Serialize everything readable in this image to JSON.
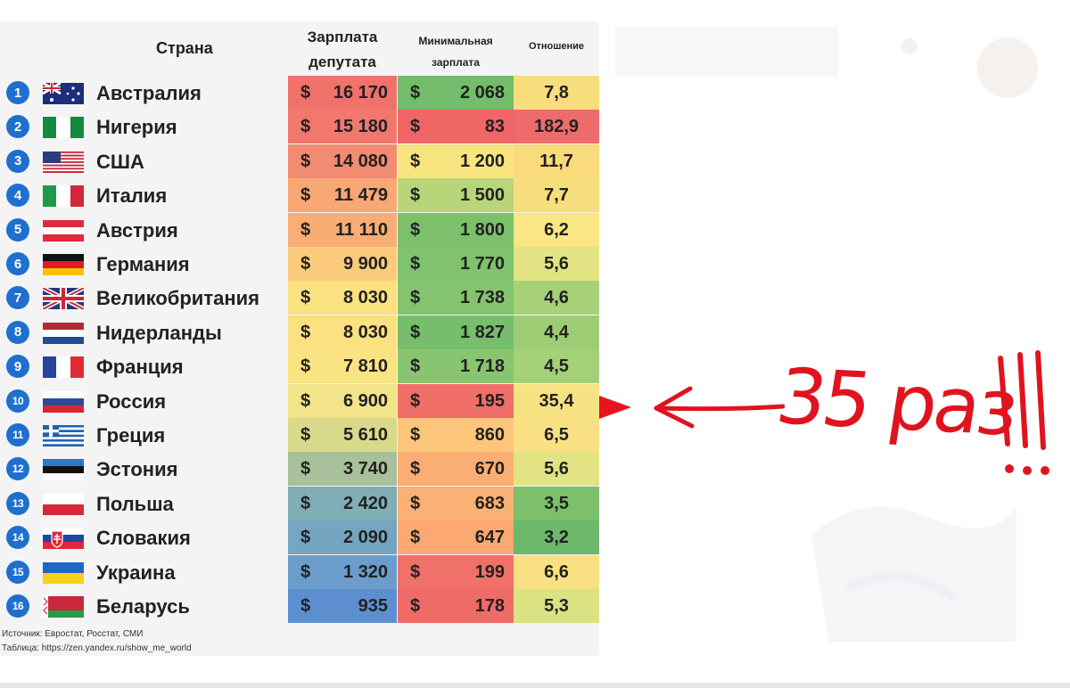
{
  "chart_data": {
    "type": "table",
    "columns": [
      "Страна",
      "Зарплата депутата",
      "Минимальная зарплата",
      "Отношение"
    ],
    "rows": [
      {
        "rank": "1",
        "country": "Австралия",
        "flag": "australia",
        "salary": "16 170",
        "min_wage": "2 068",
        "ratio": "7,8",
        "salary_color": "#f0726a",
        "min_color": "#72bc6b",
        "ratio_color": "#f8dd7c"
      },
      {
        "rank": "2",
        "country": "Нигерия",
        "flag": "nigeria",
        "salary": "15 180",
        "min_wage": "83",
        "ratio": "182,9",
        "salary_color": "#f2786d",
        "min_color": "#f06666",
        "ratio_color": "#ee6b6b"
      },
      {
        "rank": "3",
        "country": "США",
        "flag": "usa",
        "salary": "14 080",
        "min_wage": "1 200",
        "ratio": "11,7",
        "salary_color": "#f38a72",
        "min_color": "#f7e47f",
        "ratio_color": "#fadb7b"
      },
      {
        "rank": "4",
        "country": "Италия",
        "flag": "italy",
        "salary": "11 479",
        "min_wage": "1 500",
        "ratio": "7,7",
        "salary_color": "#f7a874",
        "min_color": "#b8d57a",
        "ratio_color": "#f8dd7c"
      },
      {
        "rank": "5",
        "country": "Австрия",
        "flag": "austria",
        "salary": "11 110",
        "min_wage": "1 800",
        "ratio": "6,2",
        "salary_color": "#f8ad75",
        "min_color": "#7cc06c",
        "ratio_color": "#fae684"
      },
      {
        "rank": "6",
        "country": "Германия",
        "flag": "germany",
        "salary": "9 900",
        "min_wage": "1 770",
        "ratio": "5,6",
        "salary_color": "#fbcb7b",
        "min_color": "#80c26e",
        "ratio_color": "#e2e483"
      },
      {
        "rank": "7",
        "country": "Великобритания",
        "flag": "uk",
        "salary": "8 030",
        "min_wage": "1 738",
        "ratio": "4,6",
        "salary_color": "#fbe180",
        "min_color": "#85c46f",
        "ratio_color": "#a7d178"
      },
      {
        "rank": "8",
        "country": "Нидерланды",
        "flag": "netherlands",
        "salary": "8 030",
        "min_wage": "1 827",
        "ratio": "4,4",
        "salary_color": "#fbe180",
        "min_color": "#76bd6c",
        "ratio_color": "#9ccd75"
      },
      {
        "rank": "9",
        "country": "Франция",
        "flag": "france",
        "salary": "7 810",
        "min_wage": "1 718",
        "ratio": "4,5",
        "salary_color": "#fae381",
        "min_color": "#89c570",
        "ratio_color": "#a4d077"
      },
      {
        "rank": "10",
        "country": "Россия",
        "flag": "russia",
        "salary": "6 900",
        "min_wage": "195",
        "ratio": "35,4",
        "salary_color": "#f3e389",
        "min_color": "#f06e68",
        "ratio_color": "#f7e283"
      },
      {
        "rank": "11",
        "country": "Греция",
        "flag": "greece",
        "salary": "5 610",
        "min_wage": "860",
        "ratio": "6,5",
        "salary_color": "#d9d98c",
        "min_color": "#fcc67a",
        "ratio_color": "#f9e183"
      },
      {
        "rank": "12",
        "country": "Эстония",
        "flag": "estonia",
        "salary": "3 740",
        "min_wage": "670",
        "ratio": "5,6",
        "salary_color": "#a9c09c",
        "min_color": "#fbae73",
        "ratio_color": "#e2e483"
      },
      {
        "rank": "13",
        "country": "Польша",
        "flag": "poland",
        "salary": "2 420",
        "min_wage": "683",
        "ratio": "3,5",
        "salary_color": "#80aeb6",
        "min_color": "#fbb074",
        "ratio_color": "#7cc06c"
      },
      {
        "rank": "14",
        "country": "Словакия",
        "flag": "slovakia",
        "salary": "2 090",
        "min_wage": "647",
        "ratio": "3,2",
        "salary_color": "#74a6c1",
        "min_color": "#fba872",
        "ratio_color": "#6db86a"
      },
      {
        "rank": "15",
        "country": "Украина",
        "flag": "ukraine",
        "salary": "1 320",
        "min_wage": "199",
        "ratio": "6,6",
        "salary_color": "#6a9ccc",
        "min_color": "#f0716a",
        "ratio_color": "#f9e183"
      },
      {
        "rank": "16",
        "country": "Беларусь",
        "flag": "belarus",
        "salary": "935",
        "min_wage": "178",
        "ratio": "5,3",
        "salary_color": "#5d8fd0",
        "min_color": "#ef6b67",
        "ratio_color": "#dae282"
      }
    ]
  },
  "header": {
    "country": "Страна",
    "salary_line1": "Зарплата",
    "salary_line2": "депутата",
    "min_line1": "Минимальная",
    "min_line2": "зарплата",
    "ratio": "Отношение"
  },
  "currency_symbol": "$",
  "source_line1": "Источник: Евростат, Росстат, СМИ",
  "source_line2": "Таблица: https://zen.yandex.ru/show_me_world",
  "annotation": {
    "text": "35 раз",
    "color": "#e0141e",
    "marker_color": "#e8141e"
  },
  "colors": {
    "rank_badge": "#1f6fcf",
    "panel_bg": "#f4f4f4"
  }
}
